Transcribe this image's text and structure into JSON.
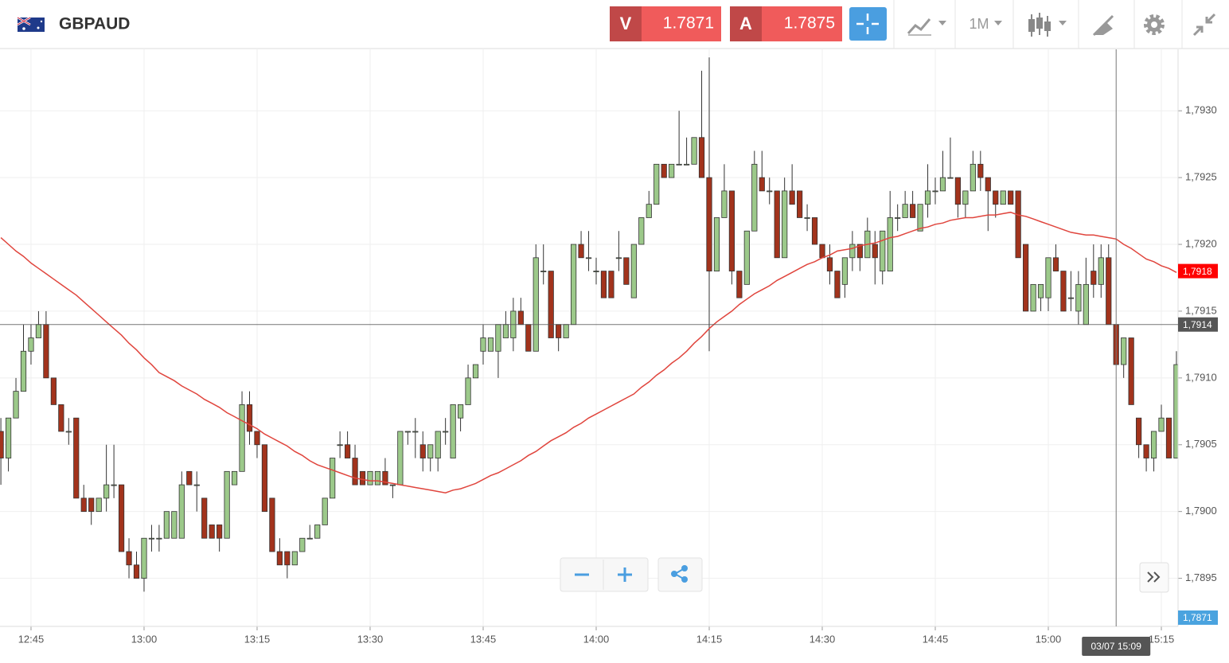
{
  "header": {
    "symbol": "GBPAUD",
    "sell": {
      "label": "V",
      "price": "1.7871"
    },
    "buy": {
      "label": "A",
      "price": "1.7875"
    },
    "timeframe": "1M"
  },
  "chart_data": {
    "type": "candlestick",
    "x": [
      "12:41",
      "12:42",
      "12:43",
      "12:44",
      "12:45",
      "12:46",
      "12:47",
      "12:48",
      "12:49",
      "12:50",
      "12:51",
      "12:52",
      "12:53",
      "12:54",
      "12:55",
      "12:56",
      "12:57",
      "12:58",
      "12:59",
      "13:00",
      "13:01",
      "13:02",
      "13:03",
      "13:04",
      "13:05",
      "13:06",
      "13:07",
      "13:08",
      "13:09",
      "13:10",
      "13:11",
      "13:12",
      "13:13",
      "13:14",
      "13:15",
      "13:16",
      "13:17",
      "13:18",
      "13:19",
      "13:20",
      "13:21",
      "13:22",
      "13:23",
      "13:24",
      "13:25",
      "13:26",
      "13:27",
      "13:28",
      "13:29",
      "13:30",
      "13:31",
      "13:32",
      "13:33",
      "13:34",
      "13:35",
      "13:36",
      "13:37",
      "13:38",
      "13:39",
      "13:40",
      "13:41",
      "13:42",
      "13:43",
      "13:44",
      "13:45",
      "13:46",
      "13:47",
      "13:48",
      "13:49",
      "13:50",
      "13:51",
      "13:52",
      "13:53",
      "13:54",
      "13:55",
      "13:56",
      "13:57",
      "13:58",
      "13:59",
      "14:00",
      "14:01",
      "14:02",
      "14:03",
      "14:04",
      "14:05",
      "14:06",
      "14:07",
      "14:08",
      "14:09",
      "14:10",
      "14:11",
      "14:12",
      "14:13",
      "14:14",
      "14:15",
      "14:16",
      "14:17",
      "14:18",
      "14:19",
      "14:20",
      "14:21",
      "14:22",
      "14:23",
      "14:24",
      "14:25",
      "14:26",
      "14:27",
      "14:28",
      "14:29",
      "14:30",
      "14:31",
      "14:32",
      "14:33",
      "14:34",
      "14:35",
      "14:36",
      "14:37",
      "14:38",
      "14:39",
      "14:40",
      "14:41",
      "14:42",
      "14:43",
      "14:44",
      "14:45",
      "14:46",
      "14:47",
      "14:48",
      "14:49",
      "14:50",
      "14:51",
      "14:52",
      "14:53",
      "14:54",
      "14:55",
      "14:56",
      "14:57",
      "14:58",
      "14:59",
      "15:00",
      "15:01",
      "15:02",
      "15:03",
      "15:04",
      "15:05",
      "15:06",
      "15:07",
      "15:08",
      "15:09",
      "15:10",
      "15:11",
      "15:12",
      "15:13",
      "15:14",
      "15:15",
      "15:16",
      "15:17"
    ],
    "open": [
      1.7906,
      1.7904,
      1.7907,
      1.7909,
      1.7912,
      1.7913,
      1.7914,
      1.791,
      1.7908,
      1.7906,
      1.7907,
      1.7901,
      1.7901,
      1.79,
      1.7901,
      1.7902,
      1.7902,
      1.7897,
      1.7896,
      1.7895,
      1.7898,
      1.7898,
      1.7898,
      1.7898,
      1.7898,
      1.7903,
      1.7902,
      1.7901,
      1.7899,
      1.7899,
      1.7898,
      1.7902,
      1.7903,
      1.7908,
      1.7906,
      1.7905,
      1.7901,
      1.7897,
      1.7897,
      1.7896,
      1.7897,
      1.7898,
      1.7898,
      1.7899,
      1.7901,
      1.7905,
      1.7905,
      1.7904,
      1.7903,
      1.7902,
      1.7902,
      1.7903,
      1.7902,
      1.7902,
      1.7906,
      1.7906,
      1.7905,
      1.7904,
      1.7904,
      1.7906,
      1.7904,
      1.7907,
      1.7908,
      1.791,
      1.7912,
      1.7912,
      1.7912,
      1.7913,
      1.7913,
      1.7915,
      1.7914,
      1.7912,
      1.7918,
      1.7918,
      1.7914,
      1.7913,
      1.7914,
      1.792,
      1.7919,
      1.7918,
      1.7918,
      1.7918,
      1.7919,
      1.7919,
      1.7916,
      1.792,
      1.7922,
      1.7923,
      1.7926,
      1.7925,
      1.7926,
      1.7926,
      1.7926,
      1.7928,
      1.7925,
      1.7918,
      1.7922,
      1.7924,
      1.7918,
      1.7917,
      1.7921,
      1.7925,
      1.7924,
      1.7924,
      1.7919,
      1.7924,
      1.7924,
      1.7922,
      1.7922,
      1.792,
      1.7919,
      1.7918,
      1.7917,
      1.7919,
      1.792,
      1.7919,
      1.792,
      1.7918,
      1.7918,
      1.7922,
      1.7922,
      1.7923,
      1.7921,
      1.7923,
      1.7924,
      1.7924,
      1.7925,
      1.7925,
      1.7923,
      1.7924,
      1.7926,
      1.7925,
      1.7924,
      1.7923,
      1.7924,
      1.7924,
      1.792,
      1.7915,
      1.7916,
      1.7916,
      1.7919,
      1.7918,
      1.7916,
      1.7915,
      1.7914,
      1.7918,
      1.7917,
      1.7919,
      1.7914,
      1.7911,
      1.7913,
      1.7907,
      1.7905,
      1.7904,
      1.7906,
      1.7907,
      1.7904
    ],
    "high": [
      1.7907,
      1.7907,
      1.791,
      1.7914,
      1.7914,
      1.7915,
      1.7915,
      1.791,
      1.7908,
      1.7907,
      1.7907,
      1.7902,
      1.7901,
      1.7901,
      1.7905,
      1.7905,
      1.7902,
      1.7898,
      1.7897,
      1.7898,
      1.7899,
      1.7899,
      1.79,
      1.79,
      1.7903,
      1.7903,
      1.7903,
      1.7901,
      1.7899,
      1.7899,
      1.7903,
      1.7903,
      1.7909,
      1.7909,
      1.7906,
      1.7905,
      1.7901,
      1.7898,
      1.7897,
      1.7897,
      1.7898,
      1.7899,
      1.7899,
      1.7901,
      1.7904,
      1.7906,
      1.7906,
      1.7905,
      1.7903,
      1.7903,
      1.7903,
      1.7904,
      1.7902,
      1.7906,
      1.7906,
      1.7907,
      1.7906,
      1.7905,
      1.7906,
      1.7907,
      1.7908,
      1.7908,
      1.7911,
      1.7911,
      1.7914,
      1.7913,
      1.7914,
      1.7915,
      1.7916,
      1.7916,
      1.7914,
      1.792,
      1.792,
      1.7918,
      1.7914,
      1.7914,
      1.792,
      1.7921,
      1.7921,
      1.7919,
      1.7918,
      1.7918,
      1.7921,
      1.7919,
      1.792,
      1.7922,
      1.7924,
      1.7926,
      1.7926,
      1.7926,
      1.793,
      1.7928,
      1.7928,
      1.7933,
      1.7934,
      1.7922,
      1.7926,
      1.7924,
      1.7918,
      1.7921,
      1.7927,
      1.7927,
      1.7925,
      1.7924,
      1.7925,
      1.7926,
      1.7924,
      1.7923,
      1.7922,
      1.792,
      1.792,
      1.7918,
      1.7919,
      1.7921,
      1.792,
      1.7922,
      1.7921,
      1.7921,
      1.7924,
      1.7923,
      1.7924,
      1.7924,
      1.7923,
      1.7926,
      1.7925,
      1.7927,
      1.7928,
      1.7925,
      1.7924,
      1.7927,
      1.7927,
      1.7925,
      1.7924,
      1.7924,
      1.7924,
      1.7924,
      1.792,
      1.7917,
      1.7917,
      1.7919,
      1.792,
      1.7918,
      1.7918,
      1.7918,
      1.7919,
      1.792,
      1.792,
      1.792,
      1.7914,
      1.7913,
      1.7913,
      1.7907,
      1.7905,
      1.7906,
      1.7908,
      1.7907,
      1.7912
    ],
    "low": [
      1.7902,
      1.7903,
      1.7907,
      1.7909,
      1.7911,
      1.7913,
      1.791,
      1.7908,
      1.7906,
      1.7905,
      1.7901,
      1.79,
      1.7899,
      1.79,
      1.79,
      1.7901,
      1.7897,
      1.7895,
      1.7895,
      1.7894,
      1.7897,
      1.7897,
      1.7898,
      1.7898,
      1.7898,
      1.7902,
      1.79,
      1.7898,
      1.7898,
      1.7897,
      1.7898,
      1.7902,
      1.7903,
      1.7905,
      1.7904,
      1.79,
      1.7897,
      1.7896,
      1.7895,
      1.7896,
      1.7897,
      1.7898,
      1.7898,
      1.7899,
      1.7901,
      1.7904,
      1.7904,
      1.7902,
      1.7902,
      1.7902,
      1.7902,
      1.7902,
      1.7901,
      1.7902,
      1.7905,
      1.7904,
      1.7903,
      1.7903,
      1.7903,
      1.7905,
      1.7904,
      1.7906,
      1.7908,
      1.791,
      1.7911,
      1.7912,
      1.791,
      1.7913,
      1.7912,
      1.7914,
      1.7912,
      1.7912,
      1.7917,
      1.7913,
      1.7912,
      1.7913,
      1.7914,
      1.7919,
      1.7918,
      1.7917,
      1.7916,
      1.7916,
      1.7918,
      1.7917,
      1.7916,
      1.792,
      1.7922,
      1.7923,
      1.7925,
      1.7925,
      1.7926,
      1.7926,
      1.7926,
      1.7925,
      1.7912,
      1.7918,
      1.7922,
      1.7917,
      1.7916,
      1.7917,
      1.7921,
      1.7924,
      1.7923,
      1.7919,
      1.7919,
      1.7923,
      1.7922,
      1.7921,
      1.792,
      1.7919,
      1.7917,
      1.7916,
      1.7916,
      1.7918,
      1.7918,
      1.7919,
      1.7917,
      1.7917,
      1.7918,
      1.7921,
      1.7922,
      1.7922,
      1.7921,
      1.7922,
      1.7923,
      1.7924,
      1.7925,
      1.7922,
      1.7922,
      1.7924,
      1.7924,
      1.7921,
      1.7922,
      1.7923,
      1.7923,
      1.7919,
      1.7915,
      1.7915,
      1.7915,
      1.7915,
      1.7918,
      1.7915,
      1.7915,
      1.7914,
      1.7914,
      1.7916,
      1.7916,
      1.7914,
      1.7911,
      1.791,
      1.7908,
      1.7904,
      1.7903,
      1.7903,
      1.7906,
      1.7904,
      1.7904
    ],
    "close": [
      1.7904,
      1.7907,
      1.7909,
      1.7912,
      1.7913,
      1.7914,
      1.791,
      1.7908,
      1.7906,
      1.7906,
      1.7901,
      1.79,
      1.79,
      1.7901,
      1.7902,
      1.7902,
      1.7897,
      1.7896,
      1.7895,
      1.7898,
      1.7898,
      1.7898,
      1.79,
      1.79,
      1.7902,
      1.7902,
      1.7902,
      1.7898,
      1.7898,
      1.7898,
      1.7903,
      1.7903,
      1.7908,
      1.7906,
      1.7905,
      1.79,
      1.7897,
      1.7896,
      1.7896,
      1.7897,
      1.7898,
      1.7898,
      1.7899,
      1.7901,
      1.7904,
      1.7905,
      1.7904,
      1.7902,
      1.7902,
      1.7903,
      1.7903,
      1.7902,
      1.7902,
      1.7906,
      1.7906,
      1.7906,
      1.7904,
      1.7905,
      1.7906,
      1.7906,
      1.7908,
      1.7908,
      1.791,
      1.7911,
      1.7913,
      1.7913,
      1.7914,
      1.7914,
      1.7915,
      1.7914,
      1.7912,
      1.7919,
      1.7918,
      1.7913,
      1.7913,
      1.7914,
      1.792,
      1.7919,
      1.7919,
      1.7918,
      1.7916,
      1.7916,
      1.7919,
      1.7917,
      1.792,
      1.7922,
      1.7923,
      1.7926,
      1.7925,
      1.7926,
      1.7926,
      1.7926,
      1.7928,
      1.7925,
      1.7918,
      1.7922,
      1.7924,
      1.7918,
      1.7916,
      1.7921,
      1.7926,
      1.7924,
      1.7924,
      1.7919,
      1.7924,
      1.7923,
      1.7922,
      1.7922,
      1.792,
      1.7919,
      1.7918,
      1.7916,
      1.7919,
      1.792,
      1.7919,
      1.7921,
      1.7919,
      1.7921,
      1.7922,
      1.7922,
      1.7923,
      1.7922,
      1.7923,
      1.7924,
      1.7924,
      1.7925,
      1.7925,
      1.7923,
      1.7924,
      1.7926,
      1.7925,
      1.7924,
      1.7923,
      1.7924,
      1.7923,
      1.7919,
      1.7915,
      1.7917,
      1.7917,
      1.7919,
      1.7918,
      1.7915,
      1.7916,
      1.7917,
      1.7917,
      1.7917,
      1.7919,
      1.7914,
      1.7911,
      1.7913,
      1.7908,
      1.7905,
      1.7904,
      1.7906,
      1.7907,
      1.7904,
      1.7911
    ],
    "up_color": "#9cc98a",
    "down_color": "#a2331c",
    "moving_average": {
      "color": "#e0453d",
      "values": [
        1.79205,
        1.792,
        1.79195,
        1.79191,
        1.79186,
        1.79182,
        1.79178,
        1.79174,
        1.7917,
        1.79166,
        1.79162,
        1.79157,
        1.79152,
        1.79147,
        1.79142,
        1.79137,
        1.79132,
        1.79126,
        1.79121,
        1.79115,
        1.7911,
        1.79104,
        1.79101,
        1.79098,
        1.79094,
        1.79091,
        1.79088,
        1.79084,
        1.79081,
        1.79078,
        1.79074,
        1.79071,
        1.79068,
        1.79065,
        1.79062,
        1.79058,
        1.79055,
        1.79052,
        1.79049,
        1.79045,
        1.79042,
        1.79038,
        1.79035,
        1.79033,
        1.79031,
        1.79029,
        1.79027,
        1.79025,
        1.79024,
        1.79023,
        1.79023,
        1.79022,
        1.79021,
        1.7902,
        1.79019,
        1.79018,
        1.79017,
        1.79016,
        1.79015,
        1.79014,
        1.79016,
        1.79017,
        1.79019,
        1.79021,
        1.79024,
        1.79027,
        1.79029,
        1.79032,
        1.79035,
        1.79038,
        1.79042,
        1.79045,
        1.79049,
        1.79053,
        1.79056,
        1.79059,
        1.79063,
        1.79066,
        1.7907,
        1.79073,
        1.79076,
        1.79079,
        1.79082,
        1.79085,
        1.79088,
        1.79093,
        1.79097,
        1.79102,
        1.79106,
        1.79111,
        1.79115,
        1.7912,
        1.79126,
        1.79131,
        1.79137,
        1.79142,
        1.79146,
        1.7915,
        1.79155,
        1.79159,
        1.79163,
        1.79166,
        1.79169,
        1.79173,
        1.79176,
        1.79179,
        1.79182,
        1.79185,
        1.79187,
        1.7919,
        1.79192,
        1.79195,
        1.79196,
        1.79197,
        1.79199,
        1.792,
        1.79201,
        1.79203,
        1.79205,
        1.79206,
        1.79208,
        1.7921,
        1.79212,
        1.79213,
        1.79215,
        1.79216,
        1.79218,
        1.79219,
        1.7922,
        1.7922,
        1.79221,
        1.79222,
        1.79222,
        1.79223,
        1.79224,
        1.79222,
        1.79221,
        1.79219,
        1.79217,
        1.79215,
        1.79213,
        1.79211,
        1.79209,
        1.79208,
        1.79207,
        1.79207,
        1.79206,
        1.79205,
        1.79204,
        1.792,
        1.79197,
        1.79193,
        1.79189,
        1.79187,
        1.79184,
        1.79182,
        1.79179
      ]
    },
    "ylim": [
      1.78914,
      1.79346
    ],
    "yticks": [
      {
        "value": 1.7895,
        "label": "1,7895"
      },
      {
        "value": 1.79,
        "label": "1,7900"
      },
      {
        "value": 1.7905,
        "label": "1,7905"
      },
      {
        "value": 1.791,
        "label": "1,7910"
      },
      {
        "value": 1.7915,
        "label": "1,7915"
      },
      {
        "value": 1.792,
        "label": "1,7920"
      },
      {
        "value": 1.7925,
        "label": "1,7925"
      },
      {
        "value": 1.793,
        "label": "1,7930"
      }
    ],
    "xticks": [
      "12:45",
      "13:00",
      "13:15",
      "13:30",
      "13:45",
      "14:00",
      "14:15",
      "14:30",
      "14:45",
      "15:00",
      "15:15"
    ],
    "grid": true,
    "price_tags": [
      {
        "value": 1.7918,
        "label": "1,7918",
        "color": "#ff0000"
      },
      {
        "value": 1.7914,
        "label": "1,7914",
        "color": "#555555",
        "line": true
      },
      {
        "value": 1.7871,
        "label": "1,7871",
        "color": "#4aa3df"
      }
    ],
    "crosshair": {
      "x": "15:09",
      "label": "03/07 15:09"
    }
  }
}
